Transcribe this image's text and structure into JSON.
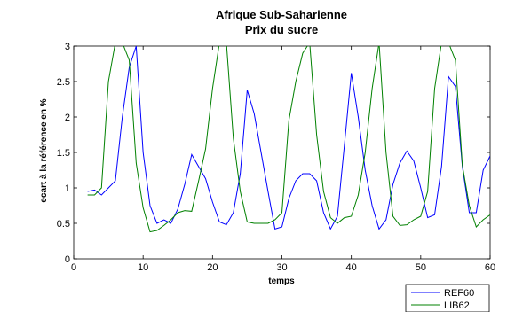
{
  "chart_data": {
    "type": "line",
    "title": "Afrique Sub-Saharienne",
    "subtitle": "Prix du sucre",
    "xlabel": "temps",
    "ylabel": "ecart à la référence en %",
    "xlim": [
      0,
      60
    ],
    "ylim": [
      0,
      3
    ],
    "xticks": [
      0,
      10,
      20,
      30,
      40,
      50,
      60
    ],
    "yticks": [
      0,
      0.5,
      1,
      1.5,
      2,
      2.5,
      3
    ],
    "xtick_labels": [
      "0",
      "10",
      "20",
      "30",
      "40",
      "50",
      "60"
    ],
    "ytick_labels": [
      "0",
      "0.5",
      "1",
      "1.5",
      "2",
      "2.5",
      "3"
    ],
    "grid": false,
    "legend_position": "below-right",
    "x": [
      2,
      3,
      4,
      5,
      6,
      7,
      8,
      9,
      10,
      11,
      12,
      13,
      14,
      15,
      16,
      17,
      18,
      19,
      20,
      21,
      22,
      23,
      24,
      25,
      26,
      27,
      28,
      29,
      30,
      31,
      32,
      33,
      34,
      35,
      36,
      37,
      38,
      39,
      40,
      41,
      42,
      43,
      44,
      45,
      46,
      47,
      48,
      49,
      50,
      51,
      52,
      53,
      54,
      55,
      56,
      57,
      58,
      59,
      60
    ],
    "series": [
      {
        "name": "REF60",
        "color": "#0000ff",
        "values": [
          0.95,
          0.97,
          0.9,
          1.0,
          1.1,
          2.0,
          2.7,
          3.0,
          1.5,
          0.75,
          0.5,
          0.55,
          0.5,
          0.7,
          1.05,
          1.47,
          1.3,
          1.13,
          0.8,
          0.52,
          0.48,
          0.65,
          1.2,
          2.38,
          2.05,
          1.5,
          0.95,
          0.42,
          0.45,
          0.85,
          1.1,
          1.2,
          1.2,
          1.1,
          0.65,
          0.42,
          0.6,
          1.6,
          2.62,
          2.0,
          1.25,
          0.75,
          0.42,
          0.55,
          1.05,
          1.35,
          1.52,
          1.38,
          1.0,
          0.58,
          0.62,
          1.3,
          2.57,
          2.43,
          1.3,
          0.65,
          0.65,
          1.25,
          1.45
        ]
      },
      {
        "name": "LIB62",
        "color": "#008000",
        "values": [
          0.9,
          0.9,
          1.0,
          2.5,
          3.05,
          3.05,
          2.8,
          1.35,
          0.72,
          0.38,
          0.4,
          0.47,
          0.55,
          0.65,
          0.68,
          0.67,
          1.1,
          1.55,
          2.4,
          3.05,
          3.05,
          1.7,
          0.95,
          0.52,
          0.5,
          0.5,
          0.5,
          0.55,
          0.65,
          1.95,
          2.5,
          2.9,
          3.05,
          1.75,
          0.95,
          0.58,
          0.5,
          0.58,
          0.6,
          0.9,
          1.5,
          2.4,
          3.05,
          1.5,
          0.6,
          0.47,
          0.48,
          0.55,
          0.6,
          0.95,
          2.4,
          3.05,
          3.05,
          2.8,
          1.32,
          0.75,
          0.45,
          0.55,
          0.62
        ]
      }
    ]
  }
}
